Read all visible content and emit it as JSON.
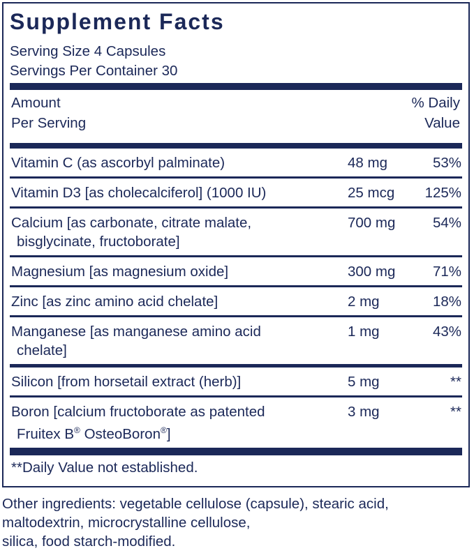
{
  "header": {
    "title": "Supplement Facts",
    "serving_size": "Serving Size 4 Capsules",
    "servings_per_container": "Servings Per Container 30"
  },
  "table": {
    "columns": {
      "amount": [
        "Amount",
        "Per Serving"
      ],
      "daily_value": [
        "% Daily",
        "Value"
      ]
    },
    "rows": [
      {
        "name": [
          "Vitamin C (as ascorbyl palminate)"
        ],
        "amount": "48 mg",
        "daily_value": "53%"
      },
      {
        "name": [
          "Vitamin D3 [as cholecalciferol] (1000 IU)"
        ],
        "amount": "25 mcg",
        "daily_value": "125%"
      },
      {
        "name": [
          "Calcium [as carbonate, citrate malate,",
          "bisglycinate, fructoborate]"
        ],
        "amount": "700 mg",
        "daily_value": "54%"
      },
      {
        "name": [
          "Magnesium [as magnesium oxide]"
        ],
        "amount": "300 mg",
        "daily_value": "71%"
      },
      {
        "name": [
          "Zinc [as zinc amino acid chelate]"
        ],
        "amount": "2 mg",
        "daily_value": "18%"
      },
      {
        "name": [
          "Manganese [as manganese amino acid",
          "chelate]"
        ],
        "amount": "1 mg",
        "daily_value": "43%"
      },
      {
        "name": [
          "Silicon [from horsetail extract (herb)]"
        ],
        "amount": "5 mg",
        "daily_value": "**"
      },
      {
        "name": [
          "Boron [calcium fructoborate as patented",
          "Fruitex B® OsteoBoron®]"
        ],
        "amount": "3 mg",
        "daily_value": "**"
      }
    ],
    "footnote": "**Daily Value not established."
  },
  "other_ingredients": [
    "Other ingredients: vegetable cellulose (capsule), stearic acid,",
    "maltodextrin, microcrystalline cellulose,",
    "silica, food starch-modified."
  ]
}
